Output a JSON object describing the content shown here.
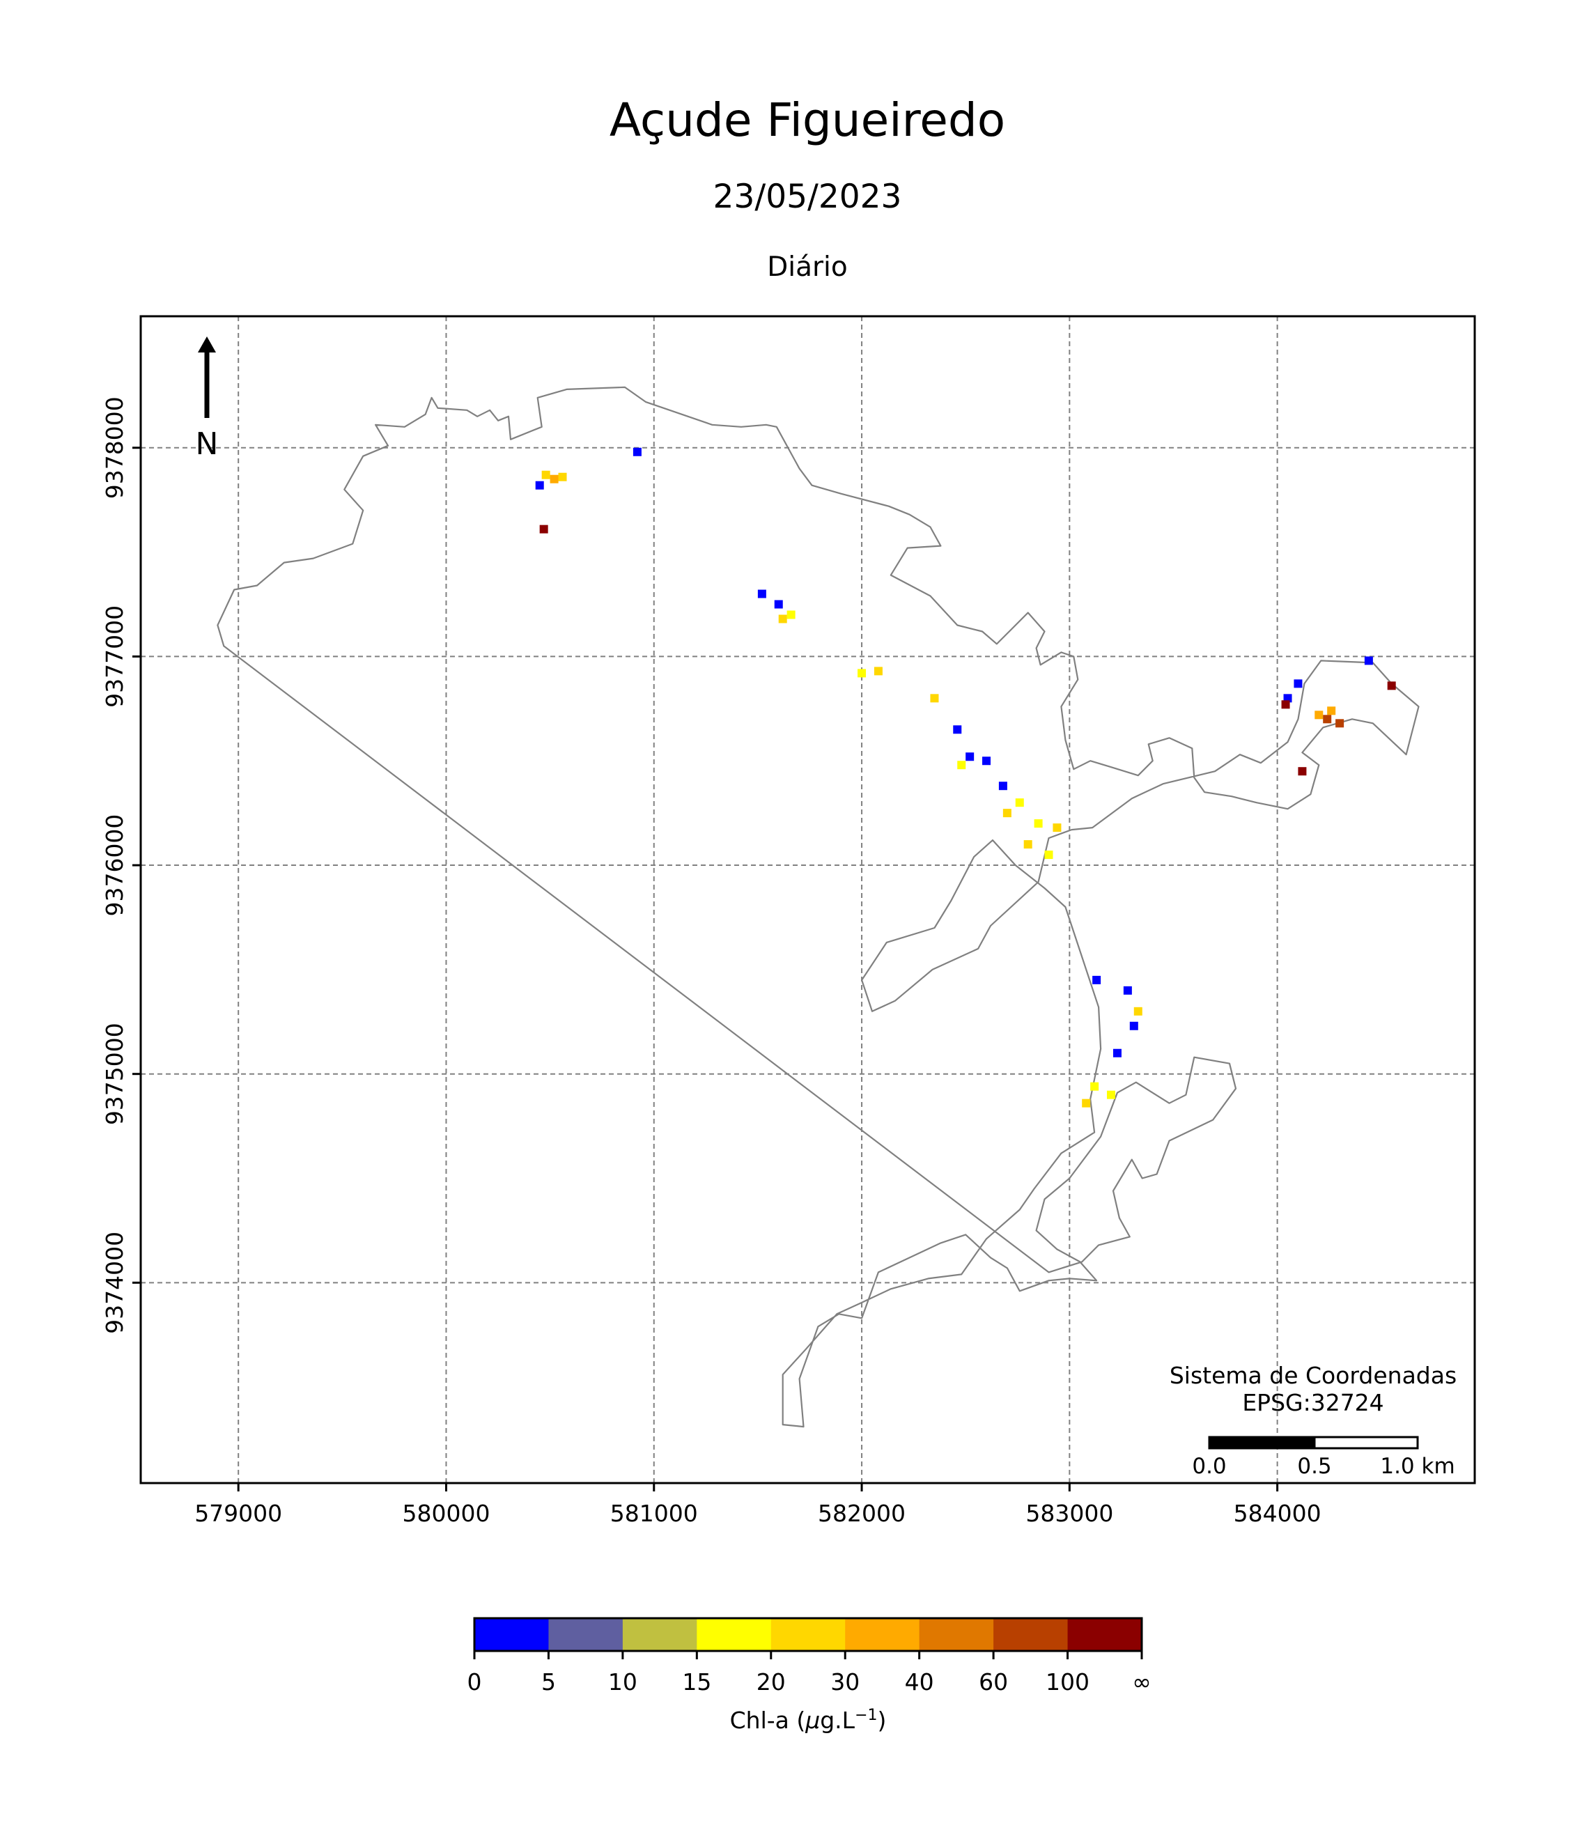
{
  "title": "Açude Figueiredo",
  "date": "23/05/2023",
  "period": "Diário",
  "north_label": "N",
  "crs": {
    "line1": "Sistema de Coordenadas",
    "line2": "EPSG:32724"
  },
  "scale_bar": {
    "labels": [
      "0.0",
      "0.5",
      "1.0 km"
    ]
  },
  "axes": {
    "x_ticks": [
      579000,
      580000,
      581000,
      582000,
      583000,
      584000
    ],
    "y_ticks": [
      9374000,
      9375000,
      9376000,
      9377000,
      9378000
    ],
    "xlim": [
      578530,
      584950
    ],
    "ylim": [
      9373040,
      9378630
    ],
    "grid": true
  },
  "colorbar": {
    "label": "Chl-a (μg.L⁻¹)",
    "tick_labels": [
      "0",
      "5",
      "10",
      "15",
      "20",
      "30",
      "40",
      "60",
      "100",
      "∞"
    ],
    "colors": [
      "#0000ff",
      "#5f5fa0",
      "#c0c040",
      "#ffff00",
      "#ffd700",
      "#ffaa00",
      "#e07800",
      "#b84000",
      "#8b0000"
    ]
  },
  "colors": {
    "shoreline": "#808080",
    "grid": "#808080"
  },
  "chart_data": {
    "type": "map",
    "title": "Açude Figueiredo",
    "subtitle": "23/05/2023",
    "xlim": [
      578530,
      584950
    ],
    "ylim": [
      9373040,
      9378630
    ],
    "grid": true,
    "reservoir_outline": [
      [
        578930,
        9377050
      ],
      [
        578900,
        9377150
      ],
      [
        578980,
        9377320
      ],
      [
        579090,
        9377340
      ],
      [
        579220,
        9377450
      ],
      [
        579360,
        9377470
      ],
      [
        579550,
        9377540
      ],
      [
        579600,
        9377700
      ],
      [
        579510,
        9377800
      ],
      [
        579600,
        9377960
      ],
      [
        579720,
        9378010
      ],
      [
        579660,
        9378110
      ],
      [
        579800,
        9378100
      ],
      [
        579900,
        9378160
      ],
      [
        579930,
        9378240
      ],
      [
        579960,
        9378190
      ],
      [
        580100,
        9378180
      ],
      [
        580150,
        9378150
      ],
      [
        580210,
        9378180
      ],
      [
        580250,
        9378130
      ],
      [
        580300,
        9378150
      ],
      [
        580310,
        9378040
      ],
      [
        580460,
        9378100
      ],
      [
        580440,
        9378240
      ],
      [
        580580,
        9378280
      ],
      [
        580860,
        9378290
      ],
      [
        580960,
        9378220
      ],
      [
        581280,
        9378110
      ],
      [
        581420,
        9378100
      ],
      [
        581540,
        9378110
      ],
      [
        581590,
        9378100
      ],
      [
        581700,
        9377900
      ],
      [
        581760,
        9377820
      ],
      [
        581900,
        9377780
      ],
      [
        582130,
        9377720
      ],
      [
        582230,
        9377680
      ],
      [
        582330,
        9377620
      ],
      [
        582380,
        9377530
      ],
      [
        582220,
        9377520
      ],
      [
        582140,
        9377390
      ],
      [
        582330,
        9377290
      ],
      [
        582460,
        9377150
      ],
      [
        582580,
        9377120
      ],
      [
        582650,
        9377060
      ],
      [
        582720,
        9377130
      ],
      [
        582800,
        9377210
      ],
      [
        582880,
        9377120
      ],
      [
        582840,
        9377040
      ],
      [
        582860,
        9376960
      ],
      [
        582960,
        9377020
      ],
      [
        583020,
        9377000
      ],
      [
        583040,
        9376890
      ],
      [
        582960,
        9376760
      ],
      [
        582980,
        9376600
      ],
      [
        583020,
        9376460
      ],
      [
        583100,
        9376500
      ],
      [
        583200,
        9376470
      ],
      [
        583330,
        9376430
      ],
      [
        583400,
        9376500
      ],
      [
        583380,
        9376580
      ],
      [
        583480,
        9376610
      ],
      [
        583590,
        9376560
      ],
      [
        583600,
        9376420
      ],
      [
        583650,
        9376350
      ],
      [
        583780,
        9376330
      ],
      [
        583900,
        9376300
      ],
      [
        584050,
        9376270
      ],
      [
        584160,
        9376340
      ],
      [
        584200,
        9376480
      ],
      [
        584120,
        9376540
      ],
      [
        584170,
        9376600
      ],
      [
        584220,
        9376660
      ],
      [
        584360,
        9376700
      ],
      [
        584460,
        9376680
      ],
      [
        584620,
        9376530
      ],
      [
        584680,
        9376760
      ],
      [
        584550,
        9376870
      ],
      [
        584460,
        9376970
      ],
      [
        584210,
        9376980
      ],
      [
        584130,
        9376870
      ],
      [
        584100,
        9376700
      ],
      [
        584050,
        9376590
      ],
      [
        583920,
        9376490
      ],
      [
        583820,
        9376530
      ],
      [
        583700,
        9376450
      ],
      [
        583450,
        9376390
      ],
      [
        583300,
        9376320
      ],
      [
        583110,
        9376180
      ],
      [
        583010,
        9376170
      ],
      [
        582900,
        9376130
      ],
      [
        582850,
        9375920
      ],
      [
        582620,
        9375710
      ],
      [
        582560,
        9375600
      ],
      [
        582340,
        9375500
      ],
      [
        582160,
        9375350
      ],
      [
        582050,
        9375300
      ],
      [
        582000,
        9375450
      ],
      [
        582120,
        9375630
      ],
      [
        582350,
        9375700
      ],
      [
        582430,
        9375830
      ],
      [
        582540,
        9376040
      ],
      [
        582630,
        9376120
      ],
      [
        582740,
        9376000
      ],
      [
        582880,
        9375890
      ],
      [
        582980,
        9375800
      ],
      [
        583040,
        9375620
      ],
      [
        583140,
        9375320
      ],
      [
        583150,
        9375120
      ],
      [
        583100,
        9374880
      ],
      [
        583120,
        9374720
      ],
      [
        582960,
        9374620
      ],
      [
        582830,
        9374450
      ],
      [
        582760,
        9374350
      ],
      [
        582600,
        9374210
      ],
      [
        582480,
        9374040
      ],
      [
        582320,
        9374020
      ],
      [
        582140,
        9373970
      ],
      [
        581990,
        9373900
      ],
      [
        581880,
        9373850
      ],
      [
        581730,
        9373680
      ],
      [
        581620,
        9373560
      ],
      [
        581620,
        9373320
      ],
      [
        581720,
        9373310
      ],
      [
        581700,
        9373540
      ],
      [
        581790,
        9373790
      ],
      [
        581890,
        9373850
      ],
      [
        582000,
        9373830
      ],
      [
        582080,
        9374050
      ],
      [
        582230,
        9374120
      ],
      [
        582380,
        9374190
      ],
      [
        582500,
        9374230
      ],
      [
        582620,
        9374120
      ],
      [
        582700,
        9374070
      ],
      [
        582760,
        9373960
      ],
      [
        582900,
        9374010
      ],
      [
        583000,
        9374020
      ],
      [
        583130,
        9374010
      ],
      [
        583050,
        9374100
      ],
      [
        582940,
        9374160
      ],
      [
        582840,
        9374250
      ],
      [
        582880,
        9374400
      ],
      [
        583000,
        9374500
      ],
      [
        583150,
        9374700
      ],
      [
        583230,
        9374910
      ],
      [
        583320,
        9374960
      ],
      [
        583480,
        9374860
      ],
      [
        583560,
        9374900
      ],
      [
        583600,
        9375080
      ],
      [
        583770,
        9375050
      ],
      [
        583800,
        9374930
      ],
      [
        583690,
        9374780
      ],
      [
        583480,
        9374680
      ],
      [
        583420,
        9374520
      ],
      [
        583350,
        9374500
      ],
      [
        583300,
        9374590
      ],
      [
        583210,
        9374440
      ],
      [
        583240,
        9374310
      ],
      [
        583290,
        9374220
      ],
      [
        583140,
        9374180
      ],
      [
        583060,
        9374100
      ],
      [
        582900,
        9374050
      ]
    ],
    "pixels_by_class": {
      "0-5": [
        [
          580450,
          9377820
        ],
        [
          580920,
          9377980
        ],
        [
          581520,
          9377300
        ],
        [
          581600,
          9377250
        ],
        [
          582460,
          9376650
        ],
        [
          582520,
          9376520
        ],
        [
          582600,
          9376500
        ],
        [
          582680,
          9376380
        ],
        [
          583130,
          9375450
        ],
        [
          583280,
          9375400
        ],
        [
          583310,
          9375230
        ],
        [
          583230,
          9375100
        ],
        [
          584050,
          9376800
        ],
        [
          584100,
          9376870
        ],
        [
          584440,
          9376980
        ]
      ],
      "15-20": [
        [
          582760,
          9376300
        ],
        [
          582850,
          9376200
        ],
        [
          582900,
          9376050
        ],
        [
          583120,
          9374940
        ],
        [
          583200,
          9374900
        ],
        [
          581660,
          9377200
        ],
        [
          582000,
          9376920
        ],
        [
          582480,
          9376480
        ]
      ],
      "20-30": [
        [
          580480,
          9377870
        ],
        [
          580560,
          9377860
        ],
        [
          581620,
          9377180
        ],
        [
          582080,
          9376930
        ],
        [
          582700,
          9376250
        ],
        [
          582800,
          9376100
        ],
        [
          582940,
          9376180
        ],
        [
          583080,
          9374860
        ],
        [
          583330,
          9375300
        ],
        [
          582350,
          9376800
        ]
      ],
      "30-40": [
        [
          580520,
          9377850
        ],
        [
          584200,
          9376720
        ],
        [
          584260,
          9376740
        ]
      ],
      "60-100": [
        [
          584240,
          9376700
        ],
        [
          584300,
          9376680
        ]
      ],
      "100+": [
        [
          580470,
          9377610
        ],
        [
          584040,
          9376770
        ],
        [
          584120,
          9376450
        ],
        [
          584550,
          9376860
        ]
      ]
    }
  }
}
